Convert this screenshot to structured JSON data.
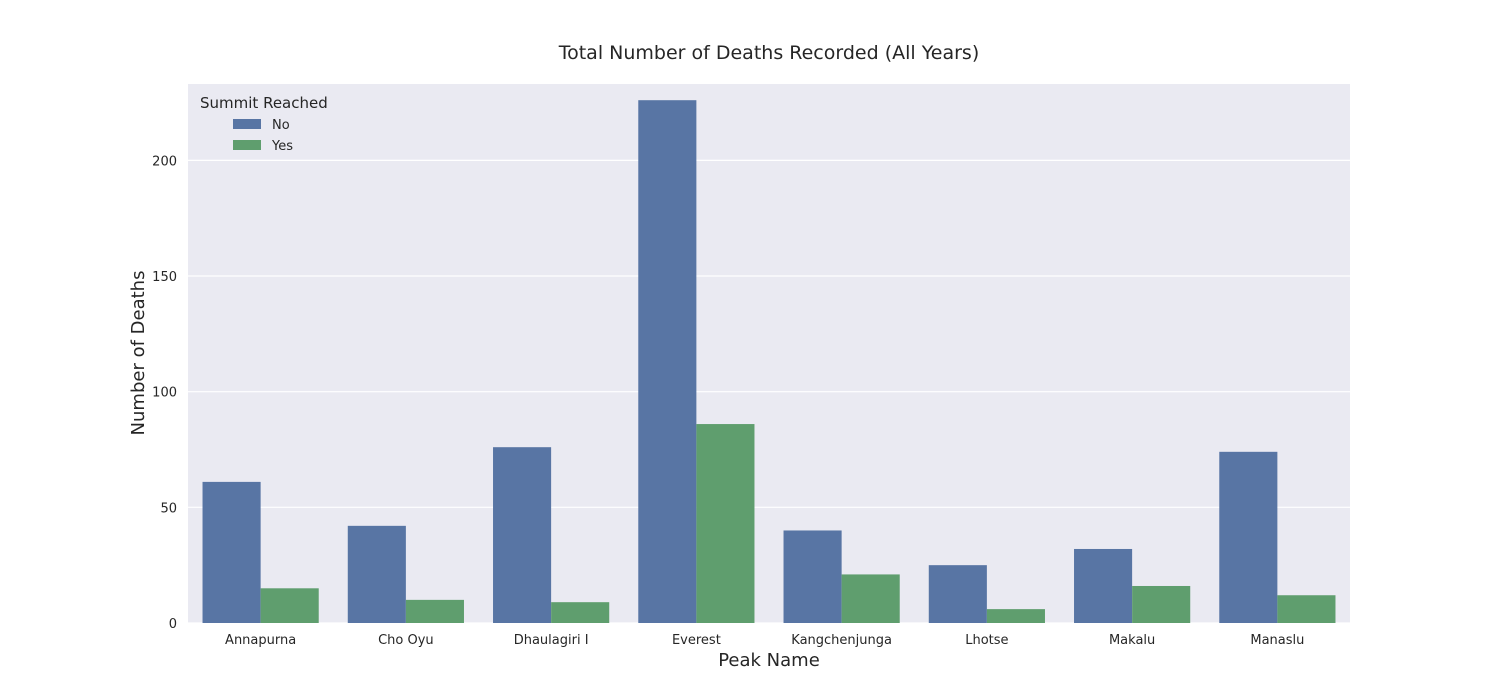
{
  "chart_data": {
    "type": "bar",
    "title": "Total Number of Deaths Recorded (All Years)",
    "xlabel": "Peak Name",
    "ylabel": "Number of Deaths",
    "categories": [
      "Annapurna",
      "Cho Oyu",
      "Dhaulagiri I",
      "Everest",
      "Kangchenjunga",
      "Lhotse",
      "Makalu",
      "Manaslu"
    ],
    "series": [
      {
        "name": "No",
        "color": "#5875a4",
        "values": [
          61,
          42,
          76,
          226,
          40,
          25,
          32,
          74
        ]
      },
      {
        "name": "Yes",
        "color": "#5f9e6e",
        "values": [
          15,
          10,
          9,
          86,
          21,
          6,
          16,
          12
        ]
      }
    ],
    "ylim": [
      0,
      233
    ],
    "yticks": [
      0,
      50,
      100,
      150,
      200
    ],
    "grid": true,
    "legend": {
      "title": "Summit Reached",
      "placement": "top-left"
    },
    "colors": {
      "plot_background": "#eaeaf2",
      "grid": "#ffffff"
    }
  }
}
